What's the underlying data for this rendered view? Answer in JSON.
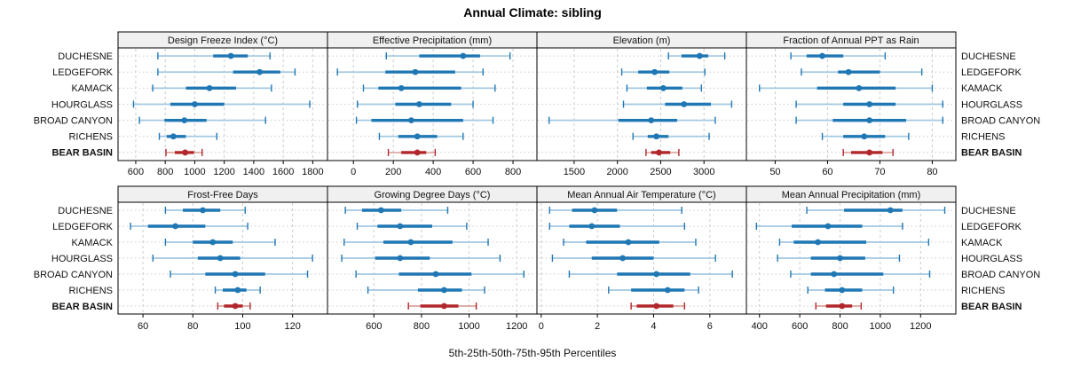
{
  "chart_data": {
    "type": "scatter",
    "subtype": "dotplot-percentile-intervals",
    "title": "Annual Climate: sibling",
    "xlabel": "5th-25th-50th-75th-95th Percentiles",
    "percentiles": [
      "5th",
      "25th",
      "50th",
      "75th",
      "95th"
    ],
    "categories": [
      "DUCHESNE",
      "LEDGEFORK",
      "KAMACK",
      "HOURGLASS",
      "BROAD CANYON",
      "RICHENS",
      "BEAR BASIN"
    ],
    "highlight_category": "BEAR BASIN",
    "layout_hint": {
      "grid": "2 rows x 4 cols",
      "row_labels": "both-sides",
      "gridlines": "dashed vertical at ticks, dotted horizontal per row",
      "legend": "none"
    },
    "colors": {
      "series": "#1f77b4",
      "series_whisker": "#a3c8e0",
      "highlight": "#b2272b",
      "highlight_whisker": "#dba49d",
      "strip_bg": "#f0f0f0",
      "grid": "#cccccc",
      "border": "#000000",
      "text": "#111111"
    },
    "panels": [
      {
        "title": "Design Freeze Index (°C)",
        "xlim": [
          480,
          1900
        ],
        "ticks": [
          600,
          800,
          1000,
          1200,
          1400,
          1600,
          1800
        ],
        "values": [
          [
            750,
            1125,
            1245,
            1360,
            1510
          ],
          [
            750,
            1260,
            1440,
            1580,
            1680
          ],
          [
            715,
            940,
            1100,
            1280,
            1520
          ],
          [
            585,
            835,
            1000,
            1200,
            1780
          ],
          [
            625,
            795,
            930,
            1080,
            1480
          ],
          [
            760,
            810,
            855,
            940,
            1150
          ],
          [
            805,
            865,
            935,
            995,
            1050
          ]
        ]
      },
      {
        "title": "Effective Precipitation (mm)",
        "xlim": [
          -130,
          920
        ],
        "ticks": [
          0,
          200,
          400,
          600,
          800
        ],
        "values": [
          [
            165,
            330,
            550,
            635,
            785
          ],
          [
            -80,
            160,
            310,
            510,
            650
          ],
          [
            50,
            125,
            240,
            540,
            710
          ],
          [
            20,
            210,
            330,
            490,
            600
          ],
          [
            15,
            90,
            290,
            550,
            700
          ],
          [
            130,
            225,
            320,
            420,
            550
          ],
          [
            175,
            240,
            320,
            365,
            410
          ]
        ]
      },
      {
        "title": "Elevation (m)",
        "xlim": [
          1070,
          3490
        ],
        "ticks": [
          1500,
          2000,
          2500,
          3000
        ],
        "values": [
          [
            2590,
            2740,
            2950,
            3050,
            3240
          ],
          [
            2050,
            2240,
            2430,
            2600,
            3010
          ],
          [
            2110,
            2340,
            2530,
            2750,
            2970
          ],
          [
            2070,
            2550,
            2770,
            3080,
            3320
          ],
          [
            1210,
            2010,
            2390,
            2690,
            3130
          ],
          [
            2180,
            2350,
            2450,
            2590,
            3060
          ],
          [
            2330,
            2390,
            2480,
            2610,
            2710
          ]
        ]
      },
      {
        "title": "Fraction of Annual PPT as Rain",
        "xlim": [
          44.5,
          84.5
        ],
        "ticks": [
          50,
          60,
          70,
          80
        ],
        "values": [
          [
            53,
            56,
            59,
            63,
            71
          ],
          [
            55,
            62,
            64,
            70,
            78
          ],
          [
            47,
            58,
            66,
            73,
            80
          ],
          [
            54,
            63,
            68,
            73,
            82
          ],
          [
            54,
            61,
            68,
            75,
            82
          ],
          [
            59,
            63,
            67,
            71,
            75.5
          ],
          [
            63,
            64.5,
            68,
            70.5,
            72.5
          ]
        ]
      },
      {
        "title": "Frost-Free Days",
        "xlim": [
          50,
          134
        ],
        "ticks": [
          60,
          80,
          100,
          120
        ],
        "values": [
          [
            69,
            76,
            84,
            91,
            101
          ],
          [
            55,
            62,
            73,
            85,
            102
          ],
          [
            69,
            80,
            88,
            96,
            113
          ],
          [
            64,
            82,
            91,
            99,
            128
          ],
          [
            71,
            85,
            97,
            109,
            126
          ],
          [
            89,
            92,
            98,
            101.5,
            107
          ],
          [
            90,
            92.5,
            97,
            100,
            103
          ]
        ]
      },
      {
        "title": "Growing Degree Days (°C)",
        "xlim": [
          405,
          1285
        ],
        "ticks": [
          600,
          800,
          1000,
          1200
        ],
        "values": [
          [
            480,
            550,
            630,
            715,
            910
          ],
          [
            530,
            615,
            710,
            845,
            990
          ],
          [
            475,
            640,
            755,
            930,
            1080
          ],
          [
            465,
            605,
            710,
            835,
            1130
          ],
          [
            525,
            705,
            860,
            1010,
            1230
          ],
          [
            575,
            785,
            895,
            970,
            1065
          ],
          [
            745,
            795,
            895,
            955,
            1030
          ]
        ]
      },
      {
        "title": "Mean Annual Air Temperature (°C)",
        "xlim": [
          -0.15,
          7.3
        ],
        "ticks": [
          0,
          2,
          4,
          6
        ],
        "values": [
          [
            0.3,
            1.1,
            1.9,
            2.7,
            5.0
          ],
          [
            0.3,
            1.0,
            1.8,
            2.8,
            5.1
          ],
          [
            0.8,
            1.6,
            3.1,
            4.2,
            5.5
          ],
          [
            0.4,
            1.8,
            2.9,
            4.0,
            6.2
          ],
          [
            1.0,
            2.7,
            4.1,
            5.3,
            6.8
          ],
          [
            2.4,
            3.2,
            4.5,
            5.1,
            5.6
          ],
          [
            3.2,
            3.4,
            4.1,
            4.7,
            5.1
          ]
        ]
      },
      {
        "title": "Mean Annual Precipitation (mm)",
        "xlim": [
          335,
          1375
        ],
        "ticks": [
          400,
          600,
          800,
          1000,
          1200
        ],
        "values": [
          [
            635,
            820,
            1050,
            1110,
            1320
          ],
          [
            385,
            560,
            740,
            910,
            1110
          ],
          [
            500,
            570,
            690,
            930,
            1240
          ],
          [
            490,
            655,
            800,
            925,
            1095
          ],
          [
            555,
            655,
            770,
            1015,
            1245
          ],
          [
            640,
            725,
            810,
            910,
            1065
          ],
          [
            680,
            730,
            810,
            860,
            905
          ]
        ]
      }
    ]
  }
}
